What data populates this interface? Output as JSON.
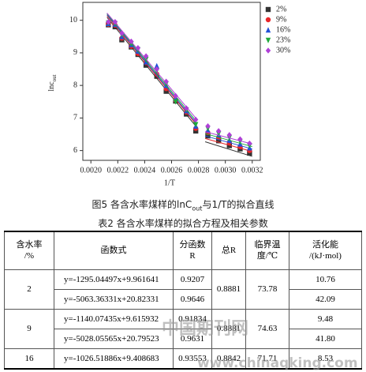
{
  "chart_data": {
    "type": "scatter",
    "x_label": "1/T",
    "y_label": "lnc",
    "y_label_sub": "out",
    "x": [
      0.00213,
      0.00218,
      0.00223,
      0.0023,
      0.00235,
      0.00241,
      0.00249,
      0.00256,
      0.00263,
      0.00271,
      0.00278,
      0.00287,
      0.00295,
      0.00303,
      0.00311,
      0.00318
    ],
    "series": [
      {
        "name": "2%",
        "color": "#333333",
        "marker": "square",
        "values": [
          9.86,
          9.8,
          9.4,
          9.18,
          8.95,
          8.62,
          8.28,
          7.82,
          7.52,
          7.12,
          6.6,
          6.45,
          6.3,
          6.15,
          6.05,
          5.92
        ],
        "fits": [
          {
            "x": [
              0.00212,
              0.00278
            ],
            "y": [
              10.09,
              6.75
            ]
          },
          {
            "x": [
              0.00285,
              0.0032
            ],
            "y": [
              6.27,
              5.82
            ]
          }
        ]
      },
      {
        "name": "9%",
        "color": "#e8262a",
        "marker": "circle",
        "values": [
          9.88,
          9.85,
          9.45,
          9.2,
          8.98,
          8.7,
          8.35,
          7.9,
          7.55,
          7.18,
          6.68,
          6.55,
          6.4,
          6.25,
          6.12,
          6.0
        ],
        "fits": [
          {
            "x": [
              0.00212,
              0.00278
            ],
            "y": [
              10.14,
              6.82
            ]
          },
          {
            "x": [
              0.00285,
              0.0032
            ],
            "y": [
              6.37,
              5.97
            ]
          }
        ]
      },
      {
        "name": "16%",
        "color": "#2150d8",
        "marker": "triangle",
        "values": [
          9.9,
          9.88,
          9.5,
          9.25,
          9.05,
          8.72,
          8.6,
          8.0,
          7.6,
          7.22,
          6.75,
          6.62,
          6.48,
          6.32,
          6.2,
          6.08
        ],
        "fits": [
          {
            "x": [
              0.00212,
              0.00278
            ],
            "y": [
              10.17,
              6.86
            ]
          },
          {
            "x": [
              0.00285,
              0.0032
            ],
            "y": [
              6.45,
              6.05
            ]
          }
        ]
      },
      {
        "name": "23%",
        "color": "#1faa3a",
        "marker": "down-triangle",
        "values": [
          9.92,
          9.9,
          9.55,
          9.28,
          9.1,
          8.8,
          8.45,
          8.05,
          7.5,
          7.25,
          6.8,
          6.68,
          6.52,
          6.4,
          6.28,
          6.15
        ],
        "fits": [
          {
            "x": [
              0.00212,
              0.00278
            ],
            "y": [
              10.2,
              6.92
            ]
          },
          {
            "x": [
              0.00285,
              0.0032
            ],
            "y": [
              6.52,
              6.12
            ]
          }
        ]
      },
      {
        "name": "30%",
        "color": "#b040d8",
        "marker": "diamond",
        "values": [
          9.95,
          9.95,
          9.6,
          9.35,
          9.15,
          8.9,
          8.5,
          8.12,
          7.68,
          7.3,
          6.95,
          6.75,
          6.6,
          6.48,
          6.35,
          6.22
        ],
        "fits": [
          {
            "x": [
              0.00212,
              0.00278
            ],
            "y": [
              10.22,
              7.0
            ]
          },
          {
            "x": [
              0.00285,
              0.0032
            ],
            "y": [
              6.58,
              6.2
            ]
          }
        ]
      }
    ],
    "xlim": [
      0.00194,
      0.00326
    ],
    "ylim": [
      5.7,
      10.55
    ],
    "xticks": [
      {
        "value": 0.002,
        "label": "0.0020"
      },
      {
        "value": 0.0022,
        "label": "0.0022"
      },
      {
        "value": 0.0024,
        "label": "0.0024"
      },
      {
        "value": 0.0026,
        "label": "0.0026"
      },
      {
        "value": 0.0028,
        "label": "0.0028"
      },
      {
        "value": 0.003,
        "label": "0.0030"
      },
      {
        "value": 0.0032,
        "label": "0.0032"
      }
    ],
    "yticks": [
      6,
      7,
      8,
      9,
      10
    ],
    "legend": "upper right"
  },
  "figure_caption": {
    "before": "图5 各含水率煤样的lnC",
    "sub": "out",
    "after": "与1/T的拟合直线"
  },
  "table": {
    "caption": "表2 各含水率煤样的拟合方程及相关参数",
    "header": [
      [
        "含水率",
        "/%"
      ],
      [
        "函数式"
      ],
      [
        "分函数",
        "R"
      ],
      [
        "总R"
      ],
      [
        "临界温",
        "度/℃"
      ],
      [
        "活化能",
        "/(kJ·mol)"
      ]
    ],
    "groups": [
      {
        "water": "2",
        "total_r": "0.8881",
        "critical_temp": "73.78",
        "fits": [
          {
            "equation": "y=-1295.04497x+9.961641",
            "r": "0.9207",
            "ea": "10.76"
          },
          {
            "equation": "y=-5063.36331x+20.82331",
            "r": "0.9646",
            "ea": "42.09"
          }
        ]
      },
      {
        "water": "9",
        "total_r": "0.8881",
        "critical_temp": "74.63",
        "fits": [
          {
            "equation": "y=-1140.07435x+9.615932",
            "r": "0.91834",
            "ea": "9.48"
          },
          {
            "equation": "y=-5028.05565x+20.79523",
            "r": "0.9631",
            "ea": "41.80"
          }
        ]
      },
      {
        "water": "16",
        "total_r": "0.8842",
        "critical_temp": "71.71",
        "fits": [
          {
            "equation": "y=-1026.51886x+9.408683",
            "r": "0.93553",
            "ea": "8.53"
          }
        ]
      }
    ]
  },
  "watermark": {
    "site": "中国期刊网",
    "url": "www.chinaqking.com"
  }
}
